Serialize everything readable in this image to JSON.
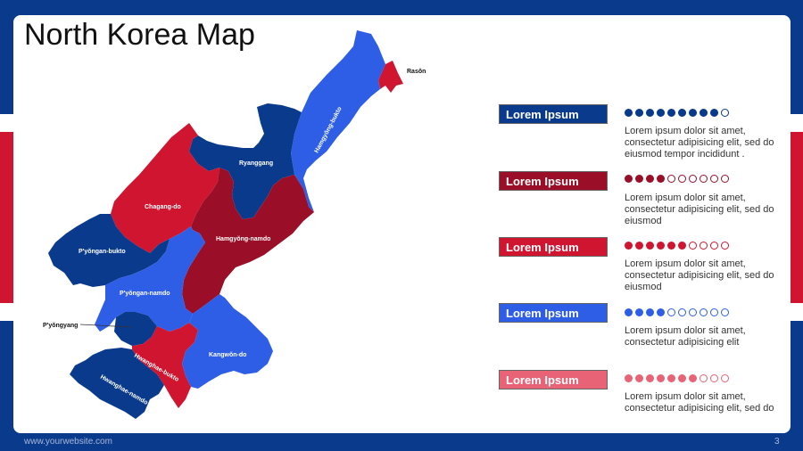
{
  "title": "North Korea Map",
  "footer": {
    "url": "www.yourwebsite.com",
    "page": "3"
  },
  "colors": {
    "navy": "#0a3a8c",
    "blue": "#2e5ee6",
    "red": "#cf1530",
    "darkred": "#9a0f27",
    "pink": "#e96377"
  },
  "map": {
    "labels": {
      "rason": "Rasŏn",
      "hamgyong_bukto": "Hamgyŏng-bukto",
      "ryanggang": "Ryanggang",
      "chagang": "Chagang-do",
      "hamgyong_namdo": "Hamgyŏng-namdo",
      "pyongan_bukto": "P'yŏngan-bukto",
      "pyongan_namdo": "P'yŏngan-namdo",
      "pyongyang": "P'yŏngyang",
      "hwanghae_bukto": "Hwanghae-bukto",
      "hwanghae_namdo": "Hwanghae-namdo",
      "kangwon": "Kangwŏn-do"
    }
  },
  "legend": [
    {
      "label": "Lorem Ipsum",
      "color": "#0a3a8c",
      "filled": 9,
      "total": 10,
      "text": "Lorem ipsum dolor sit amet, consectetur adipisicing elit, sed do eiusmod tempor incididunt ."
    },
    {
      "label": "Lorem Ipsum",
      "color": "#9a0f27",
      "filled": 4,
      "total": 10,
      "text": "Lorem ipsum dolor sit amet, consectetur adipisicing elit, sed do eiusmod"
    },
    {
      "label": "Lorem Ipsum",
      "color": "#cf1530",
      "filled": 6,
      "total": 10,
      "text": "Lorem ipsum dolor sit amet, consectetur adipisicing elit, sed do eiusmod"
    },
    {
      "label": "Lorem Ipsum",
      "color": "#2e5ee6",
      "filled": 4,
      "total": 10,
      "text": "Lorem ipsum dolor sit amet, consectetur adipisicing elit"
    },
    {
      "label": "Lorem Ipsum",
      "color": "#e96377",
      "filled": 7,
      "total": 10,
      "text": "Lorem ipsum dolor sit amet, consectetur adipisicing elit, sed do"
    }
  ]
}
